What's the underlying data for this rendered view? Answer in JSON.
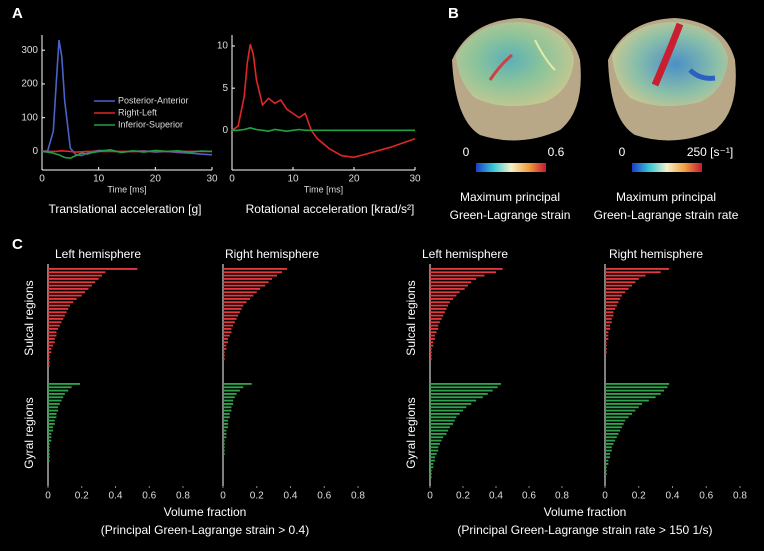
{
  "panel_labels": [
    "A",
    "B",
    "C"
  ],
  "panel_b": [
    {
      "scale_min": "0",
      "scale_max": "0.6",
      "caption_lines": [
        "Maximum principal",
        "Green-Lagrange strain"
      ]
    },
    {
      "scale_min": "0",
      "scale_max": "250 [s⁻¹]",
      "caption_lines": [
        "Maximum principal",
        "Green-Lagrange strain rate"
      ]
    }
  ],
  "chart_data": [
    {
      "type": "line",
      "title": "Translational acceleration [g]",
      "xlabel": "Time [ms]",
      "x": [
        0,
        1,
        2,
        2.5,
        3,
        3.5,
        4,
        5,
        6,
        7,
        8,
        9,
        10,
        12,
        14,
        16,
        18,
        20,
        22,
        24,
        26,
        28,
        30
      ],
      "series": [
        {
          "name": "Posterior-Anterior",
          "color": "#4a63c8",
          "values": [
            0,
            2,
            60,
            200,
            330,
            280,
            150,
            10,
            -10,
            -12,
            -5,
            0,
            3,
            2,
            -2,
            0,
            2,
            -2,
            0,
            -3,
            -5,
            -8,
            -10
          ]
        },
        {
          "name": "Right-Left",
          "color": "#e02626",
          "values": [
            0,
            0,
            0,
            0,
            1,
            2,
            1,
            0,
            -2,
            -1,
            0,
            0,
            0,
            0,
            0,
            0,
            0,
            0,
            0,
            0,
            0,
            0,
            0
          ]
        },
        {
          "name": "Inferior-Superior",
          "color": "#22a045",
          "values": [
            0,
            -2,
            -5,
            -8,
            -10,
            -14,
            -18,
            -20,
            -12,
            -5,
            -8,
            -3,
            0,
            5,
            -3,
            2,
            -2,
            3,
            0,
            2,
            -2,
            1,
            0
          ]
        }
      ],
      "xlim": [
        0,
        30
      ],
      "xticks": [
        0,
        10,
        20,
        30
      ],
      "ylim": [
        -55,
        345
      ],
      "yticks": [
        0,
        100,
        200,
        300
      ],
      "legend": "center right"
    },
    {
      "type": "line",
      "title": "Rotational acceleration [krad/s²]",
      "xlabel": "Time [ms]",
      "x": [
        0,
        1,
        2,
        2.5,
        3,
        3.5,
        4,
        5,
        6,
        7,
        8,
        9,
        10,
        11,
        12,
        13,
        14,
        16,
        18,
        20,
        22,
        24,
        26,
        28,
        30
      ],
      "series": [
        {
          "color": "#e02626",
          "values": [
            0,
            0.5,
            4,
            8,
            10.2,
            9,
            6,
            3,
            3.8,
            3.2,
            3.6,
            2.5,
            2,
            1.5,
            2,
            0,
            -1,
            -2.2,
            -3,
            -3.2,
            -2.8,
            -2.4,
            -2,
            -1.5,
            -1
          ]
        },
        {
          "color": "#22a045",
          "values": [
            0,
            0,
            0.1,
            0.2,
            0.3,
            0.2,
            0.1,
            0,
            -0.1,
            0.1,
            0,
            -0.1,
            0,
            0.1,
            0,
            0,
            0,
            0,
            0,
            0,
            0,
            0,
            0,
            0,
            0
          ]
        }
      ],
      "xlim": [
        0,
        30
      ],
      "xticks": [
        0,
        10,
        20,
        30
      ],
      "ylim": [
        -4.7,
        11.3
      ],
      "yticks": [
        0,
        5,
        10
      ]
    },
    {
      "type": "hbar",
      "title": "Left hemisphere",
      "xlabel": "Volume fraction",
      "caption": "(Principal Green-Lagrange strain > 0.4)",
      "series": [
        {
          "name": "Sulcal regions",
          "color": "#e0393e",
          "values": [
            0.53,
            0.34,
            0.32,
            0.3,
            0.28,
            0.26,
            0.24,
            0.22,
            0.2,
            0.17,
            0.15,
            0.13,
            0.12,
            0.11,
            0.1,
            0.09,
            0.08,
            0.07,
            0.06,
            0.05,
            0.05,
            0.04,
            0.04,
            0.03,
            0.02,
            0.02,
            0.01,
            0.01,
            0.01,
            0.01
          ]
        },
        {
          "name": "Gyral regions",
          "color": "#2ea34a",
          "values": [
            0.19,
            0.14,
            0.12,
            0.1,
            0.09,
            0.08,
            0.07,
            0.06,
            0.06,
            0.05,
            0.05,
            0.04,
            0.04,
            0.03,
            0.03,
            0.02,
            0.02,
            0.02,
            0.01,
            0.01,
            0.01,
            0.01,
            0.01,
            0.01,
            0,
            0,
            0,
            0,
            0,
            0
          ]
        }
      ],
      "xlim": [
        0,
        0.8
      ],
      "xticks": [
        0,
        0.2,
        0.4,
        0.6,
        0.8
      ]
    },
    {
      "type": "hbar",
      "title": "Right hemisphere",
      "series": [
        {
          "color": "#e0393e",
          "values": [
            0.38,
            0.35,
            0.32,
            0.29,
            0.27,
            0.25,
            0.22,
            0.2,
            0.18,
            0.16,
            0.14,
            0.12,
            0.11,
            0.1,
            0.09,
            0.08,
            0.07,
            0.06,
            0.05,
            0.05,
            0.04,
            0.03,
            0.03,
            0.02,
            0.02,
            0.01,
            0.01,
            0.01,
            0,
            0
          ]
        },
        {
          "color": "#2ea34a",
          "values": [
            0.17,
            0.12,
            0.1,
            0.08,
            0.07,
            0.06,
            0.06,
            0.05,
            0.05,
            0.04,
            0.04,
            0.03,
            0.03,
            0.03,
            0.02,
            0.02,
            0.02,
            0.01,
            0.01,
            0.01,
            0.01,
            0.01,
            0,
            0,
            0,
            0,
            0,
            0,
            0,
            0
          ]
        }
      ],
      "xlim": [
        0,
        0.8
      ],
      "xticks": [
        0,
        0.2,
        0.4,
        0.6,
        0.8
      ]
    },
    {
      "type": "hbar",
      "title": "Left hemisphere",
      "xlabel": "Volume fraction",
      "caption": "(Principal Green-Lagrange strain rate > 150 1/s)",
      "series": [
        {
          "name": "Sulcal regions",
          "color": "#e0393e",
          "values": [
            0.44,
            0.4,
            0.33,
            0.28,
            0.25,
            0.23,
            0.21,
            0.18,
            0.16,
            0.14,
            0.12,
            0.11,
            0.1,
            0.09,
            0.08,
            0.07,
            0.06,
            0.05,
            0.05,
            0.04,
            0.03,
            0.03,
            0.02,
            0.02,
            0.01,
            0.01,
            0.01,
            0.01,
            0,
            0
          ]
        },
        {
          "name": "Gyral regions",
          "color": "#2ea34a",
          "values": [
            0.43,
            0.41,
            0.38,
            0.35,
            0.32,
            0.28,
            0.25,
            0.22,
            0.2,
            0.18,
            0.16,
            0.15,
            0.14,
            0.12,
            0.11,
            0.1,
            0.08,
            0.07,
            0.06,
            0.05,
            0.05,
            0.04,
            0.03,
            0.03,
            0.02,
            0.02,
            0.01,
            0.01,
            0.01,
            0
          ]
        }
      ],
      "xlim": [
        0,
        0.8
      ],
      "xticks": [
        0,
        0.2,
        0.4,
        0.6,
        0.8
      ]
    },
    {
      "type": "hbar",
      "title": "Right hemisphere",
      "series": [
        {
          "color": "#e0393e",
          "values": [
            0.38,
            0.33,
            0.24,
            0.2,
            0.18,
            0.16,
            0.14,
            0.12,
            0.1,
            0.09,
            0.08,
            0.07,
            0.06,
            0.05,
            0.05,
            0.04,
            0.04,
            0.03,
            0.03,
            0.02,
            0.02,
            0.02,
            0.01,
            0.01,
            0.01,
            0.01,
            0,
            0,
            0,
            0
          ]
        },
        {
          "color": "#2ea34a",
          "values": [
            0.38,
            0.37,
            0.35,
            0.33,
            0.3,
            0.26,
            0.22,
            0.2,
            0.18,
            0.16,
            0.14,
            0.12,
            0.11,
            0.1,
            0.09,
            0.08,
            0.07,
            0.06,
            0.05,
            0.04,
            0.04,
            0.03,
            0.03,
            0.02,
            0.02,
            0.01,
            0.01,
            0.01,
            0,
            0
          ]
        }
      ],
      "xlim": [
        0,
        0.8
      ],
      "xticks": [
        0,
        0.2,
        0.4,
        0.6,
        0.8
      ]
    }
  ]
}
